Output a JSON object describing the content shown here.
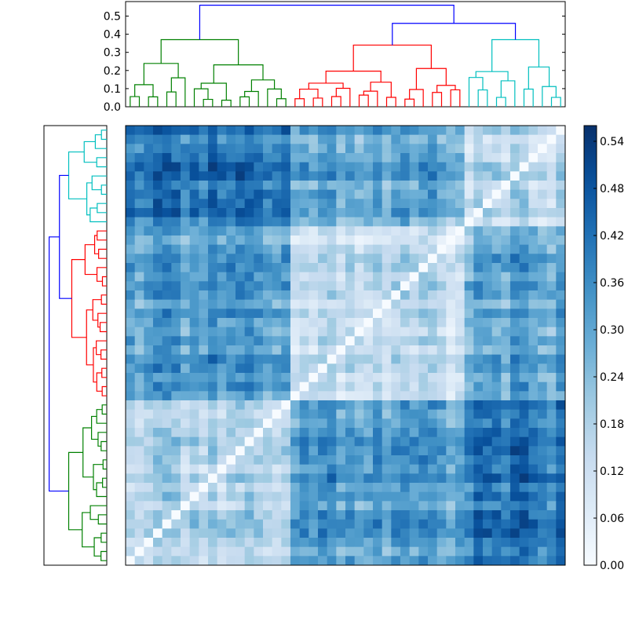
{
  "chart_data": [
    {
      "type": "dendrogram",
      "orientation": "top",
      "ylim": [
        0,
        0.58
      ],
      "yticks": [
        "0.0",
        "0.1",
        "0.2",
        "0.3",
        "0.4",
        "0.5"
      ],
      "ytick_values": [
        0,
        0.1,
        0.2,
        0.3,
        0.4,
        0.5
      ],
      "leaf_count": 48,
      "link_colors": {
        "root": "#0000ff",
        "cluster1": "#008000",
        "cluster2": "#ff0000",
        "cluster3": "#00bfbf"
      },
      "top_merge_heights": {
        "root": 0.56,
        "cluster2_with_cluster3": 0.46,
        "cluster1": 0.37,
        "cluster2": 0.34,
        "cluster3": 0.37
      }
    },
    {
      "type": "dendrogram",
      "orientation": "left",
      "leaf_count": 48,
      "link_colors": {
        "root": "#0000ff",
        "cluster1": "#008000",
        "cluster2": "#ff0000",
        "cluster3": "#00bfbf"
      }
    },
    {
      "type": "heatmap",
      "size": 48,
      "colormap": "Blues",
      "diagonal_value": 0.0
    },
    {
      "type": "colorbar",
      "vmin": 0.0,
      "vmax": 0.56,
      "ticks": [
        "0.00",
        "0.06",
        "0.12",
        "0.18",
        "0.24",
        "0.30",
        "0.36",
        "0.42",
        "0.48",
        "0.54"
      ],
      "tick_values": [
        0,
        0.06,
        0.12,
        0.18,
        0.24,
        0.3,
        0.36,
        0.42,
        0.48,
        0.54
      ]
    }
  ]
}
